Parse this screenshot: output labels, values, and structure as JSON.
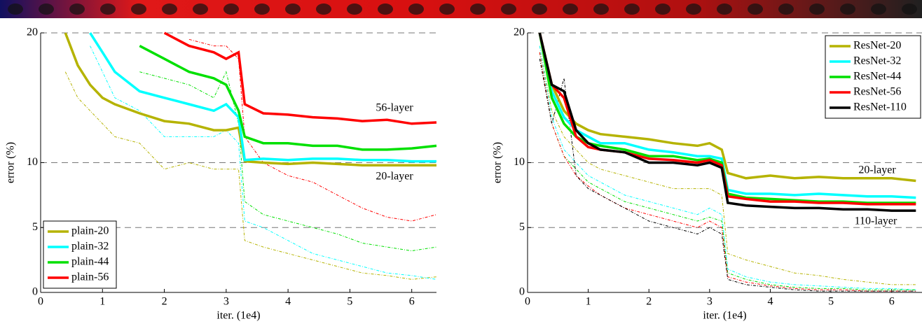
{
  "chart_data": [
    {
      "type": "line",
      "ylabel": "error (%)",
      "xlabel": "iter. (1e4)",
      "xlim": [
        0,
        6.4
      ],
      "ylim": [
        0,
        20
      ],
      "xticks": [
        0,
        1,
        2,
        3,
        4,
        5,
        6
      ],
      "yticks": [
        0,
        5,
        10,
        20
      ],
      "grid": true,
      "legend": "lower left",
      "x": [
        0.2,
        0.4,
        0.6,
        0.8,
        1.0,
        1.2,
        1.6,
        2.0,
        2.4,
        2.8,
        3.0,
        3.2,
        3.3,
        3.6,
        4.0,
        4.4,
        4.8,
        5.2,
        5.6,
        6.0,
        6.4
      ],
      "annotations": [
        "56-layer",
        "20-layer"
      ],
      "series": [
        {
          "name": "plain-20",
          "color": "#b5b300",
          "values": [
            null,
            20,
            17.5,
            16,
            15,
            14.5,
            13.8,
            13.2,
            13,
            12.5,
            12.5,
            12.7,
            10.1,
            10,
            9.9,
            10,
            9.9,
            9.8,
            9.8,
            9.8,
            9.8
          ]
        },
        {
          "name": "plain-32",
          "color": "#00ffff",
          "values": [
            null,
            null,
            null,
            20,
            18.5,
            17,
            15.5,
            15,
            14.5,
            14,
            14.5,
            13.5,
            10.2,
            10.3,
            10.2,
            10.3,
            10.3,
            10.2,
            10.2,
            10.1,
            10.1
          ]
        },
        {
          "name": "plain-44",
          "color": "#00e000",
          "values": [
            null,
            null,
            null,
            null,
            null,
            null,
            19,
            18,
            17,
            16.5,
            16,
            14,
            12,
            11.5,
            11.5,
            11.3,
            11.3,
            11,
            11,
            11.1,
            11.3
          ]
        },
        {
          "name": "plain-56",
          "color": "#ff0000",
          "values": [
            null,
            null,
            null,
            null,
            null,
            null,
            null,
            20,
            19,
            18.5,
            18,
            18.5,
            14.5,
            13.8,
            13.7,
            13.5,
            13.4,
            13.2,
            13.3,
            13,
            13.1
          ]
        }
      ],
      "train_series": [
        {
          "color": "#b5b300",
          "values": [
            null,
            17,
            15,
            14,
            13,
            12,
            11.5,
            9.5,
            10,
            9.5,
            9.5,
            9.5,
            4,
            3.5,
            3,
            2.5,
            2,
            1.5,
            1.3,
            1,
            1.2
          ]
        },
        {
          "color": "#00ffff",
          "values": [
            null,
            null,
            null,
            19,
            17,
            15,
            14,
            12,
            12,
            12,
            12.5,
            11.5,
            5.5,
            5,
            4,
            3,
            2.5,
            2,
            1.5,
            1.3,
            1
          ]
        },
        {
          "color": "#00e000",
          "values": [
            null,
            null,
            null,
            null,
            null,
            null,
            17,
            16.5,
            16,
            15,
            17,
            13,
            7,
            6,
            5.5,
            5,
            4.5,
            3.8,
            3.5,
            3.2,
            3.5
          ]
        },
        {
          "color": "#ff0000",
          "values": [
            null,
            null,
            null,
            null,
            null,
            null,
            null,
            null,
            19.5,
            19,
            19,
            18,
            12,
            10,
            9,
            8.5,
            7.5,
            6.5,
            5.8,
            5.5,
            6
          ]
        }
      ]
    },
    {
      "type": "line",
      "ylabel": "error (%)",
      "xlabel": "iter. (1e4)",
      "xlim": [
        0,
        6.5
      ],
      "ylim": [
        0,
        20
      ],
      "xticks": [
        0,
        1,
        2,
        3,
        4,
        5,
        6
      ],
      "yticks": [
        0,
        5,
        10,
        20
      ],
      "grid": true,
      "legend": "upper right",
      "x": [
        0.2,
        0.4,
        0.6,
        0.8,
        1.0,
        1.2,
        1.6,
        2.0,
        2.4,
        2.8,
        3.0,
        3.2,
        3.3,
        3.6,
        4.0,
        4.4,
        4.8,
        5.2,
        5.6,
        6.0,
        6.4
      ],
      "annotations": [
        "20-layer",
        "110-layer"
      ],
      "series": [
        {
          "name": "ResNet-20",
          "color": "#b5b300",
          "values": [
            20,
            16,
            14,
            13,
            12.5,
            12.2,
            12,
            11.8,
            11.5,
            11.3,
            11.5,
            11,
            9.2,
            8.8,
            9,
            8.8,
            8.9,
            8.8,
            8.8,
            8.8,
            8.6
          ]
        },
        {
          "name": "ResNet-32",
          "color": "#00ffff",
          "values": [
            20,
            15.5,
            13.5,
            12.5,
            12,
            11.5,
            11.5,
            11,
            10.8,
            10.5,
            10.5,
            10.3,
            7.9,
            7.6,
            7.6,
            7.5,
            7.6,
            7.5,
            7.4,
            7.4,
            7.3
          ]
        },
        {
          "name": "ResNet-44",
          "color": "#00e000",
          "values": [
            20,
            15,
            13,
            12,
            11.5,
            11.3,
            11,
            10.5,
            10.5,
            10.2,
            10.3,
            10,
            7.6,
            7.3,
            7.2,
            7.1,
            7,
            7,
            6.9,
            6.9,
            6.9
          ]
        },
        {
          "name": "ResNet-56",
          "color": "#ff0000",
          "values": [
            20,
            16,
            15,
            12,
            11.2,
            11,
            10.8,
            10.3,
            10.2,
            10,
            10.2,
            9.8,
            7.4,
            7.2,
            7,
            7,
            6.9,
            6.9,
            6.8,
            6.8,
            6.8
          ]
        },
        {
          "name": "ResNet-110",
          "color": "#000000",
          "values": [
            20,
            16,
            15.5,
            12.5,
            11.5,
            11,
            10.8,
            10,
            10,
            9.8,
            10,
            9.6,
            6.9,
            6.7,
            6.6,
            6.5,
            6.5,
            6.4,
            6.4,
            6.3,
            6.3
          ]
        }
      ],
      "train_series": [
        {
          "color": "#b5b300",
          "values": [
            19,
            14,
            12,
            11,
            10,
            9.5,
            9,
            8.5,
            8,
            8,
            8,
            7.5,
            3,
            2.5,
            2,
            1.5,
            1.3,
            1,
            0.8,
            0.6,
            0.6
          ]
        },
        {
          "color": "#00ffff",
          "values": [
            19,
            13.5,
            11,
            10,
            9,
            8.5,
            7.5,
            7,
            6.5,
            6,
            6.5,
            6,
            1.8,
            1.2,
            0.8,
            0.6,
            0.5,
            0.4,
            0.3,
            0.3,
            0.2
          ]
        },
        {
          "color": "#00e000",
          "values": [
            18.5,
            13,
            10.5,
            9.5,
            8.5,
            8,
            7,
            6.5,
            6,
            5.5,
            5.8,
            5.5,
            1.5,
            1,
            0.6,
            0.4,
            0.3,
            0.3,
            0.2,
            0.2,
            0.2
          ]
        },
        {
          "color": "#ff0000",
          "values": [
            18.5,
            13,
            10.5,
            9,
            8.2,
            7.5,
            6.5,
            6,
            5.5,
            5,
            5.5,
            5,
            1.2,
            0.8,
            0.5,
            0.3,
            0.2,
            0.2,
            0.1,
            0.1,
            0.1
          ]
        },
        {
          "color": "#000000",
          "values": [
            18,
            13,
            16.5,
            9,
            8,
            7.5,
            6.5,
            5.5,
            5,
            4.5,
            5,
            4.5,
            1,
            0.6,
            0.4,
            0.2,
            0.1,
            0.1,
            0.1,
            0.1,
            0.1
          ]
        }
      ]
    }
  ]
}
